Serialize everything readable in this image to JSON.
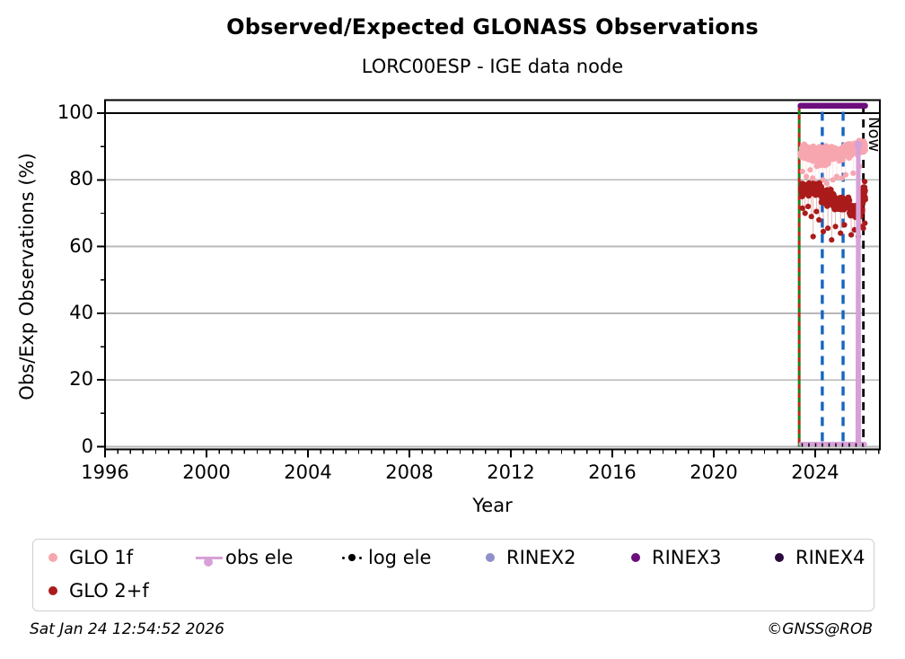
{
  "header": {
    "title": "Observed/Expected GLONASS Observations",
    "subtitle": "LORC00ESP - IGE data node"
  },
  "axes": {
    "x_label": "Year",
    "y_label": "Obs/Exp Observations (%)",
    "x_ticks": [
      1996,
      2000,
      2004,
      2008,
      2012,
      2016,
      2020,
      2024
    ],
    "x_minor_step": 0.5,
    "y_ticks": [
      0,
      20,
      40,
      60,
      80,
      100
    ],
    "y_minor_step": 10,
    "x_range": [
      1996,
      2026.55
    ],
    "y_range": [
      -0.8,
      103.9
    ]
  },
  "chart_data": {
    "type": "scatter",
    "title": "Observed/Expected GLONASS Observations",
    "subtitle": "LORC00ESP - IGE data node",
    "xlabel": "Year",
    "ylabel": "Obs/Exp Observations (%)",
    "xlim": [
      1996,
      2026.55
    ],
    "ylim": [
      -0.8,
      103.9
    ],
    "grid": true,
    "reference_line_y": 100,
    "legend_position": "bottom",
    "series": [
      {
        "name": "GLO 1f",
        "type": "scatter",
        "color": "#f7a6b0",
        "marker_r": 3.4,
        "seed": 12345,
        "bands": [
          {
            "x0": 2023.42,
            "x1": 2023.95,
            "mean": 88.2,
            "spread": 3.4,
            "n": 110
          },
          {
            "x0": 2023.95,
            "x1": 2024.55,
            "mean": 87.0,
            "spread": 3.6,
            "n": 130
          },
          {
            "x0": 2024.55,
            "x1": 2025.15,
            "mean": 88.0,
            "spread": 3.0,
            "n": 130
          },
          {
            "x0": 2025.15,
            "x1": 2025.7,
            "mean": 89.0,
            "spread": 2.6,
            "n": 110
          },
          {
            "x0": 2025.7,
            "x1": 2025.97,
            "mean": 90.0,
            "spread": 2.4,
            "n": 70
          }
        ],
        "outliers": [
          [
            2023.5,
            82.5
          ],
          [
            2023.65,
            81.0
          ],
          [
            2023.8,
            83.0
          ],
          [
            2023.9,
            80.5
          ],
          [
            2024.0,
            79.0
          ],
          [
            2024.15,
            78.5
          ],
          [
            2024.3,
            80.0
          ],
          [
            2024.45,
            79.0
          ],
          [
            2024.55,
            77.5
          ],
          [
            2024.7,
            80.0
          ],
          [
            2024.85,
            81.0
          ],
          [
            2025.05,
            80.5
          ],
          [
            2025.2,
            81.5
          ],
          [
            2025.5,
            82.0
          ],
          [
            2025.75,
            84.0
          ]
        ]
      },
      {
        "name": "GLO 2+f",
        "type": "scatter",
        "color": "#aa1b1b",
        "marker_r": 3.4,
        "seed": 67890,
        "bands": [
          {
            "x0": 2023.42,
            "x1": 2024.25,
            "mean": 77.3,
            "spread": 2.6,
            "n": 150
          },
          {
            "x0": 2024.25,
            "x1": 2024.75,
            "mean": 74.5,
            "spread": 3.0,
            "n": 110
          },
          {
            "x0": 2024.75,
            "x1": 2025.35,
            "mean": 73.0,
            "spread": 2.8,
            "n": 120
          },
          {
            "x0": 2025.35,
            "x1": 2025.85,
            "mean": 70.5,
            "spread": 2.8,
            "n": 100
          },
          {
            "x0": 2025.85,
            "x1": 2025.97,
            "mean": 75.5,
            "spread": 3.5,
            "n": 35
          }
        ],
        "outliers": [
          [
            2023.5,
            71.5
          ],
          [
            2023.6,
            70.0
          ],
          [
            2023.72,
            72.0
          ],
          [
            2023.85,
            69.0
          ],
          [
            2023.92,
            63.0
          ],
          [
            2024.05,
            70.5
          ],
          [
            2024.15,
            68.0
          ],
          [
            2024.32,
            64.5
          ],
          [
            2024.5,
            65.5
          ],
          [
            2024.65,
            62.0
          ],
          [
            2024.8,
            66.0
          ],
          [
            2025.0,
            64.0
          ],
          [
            2025.15,
            66.5
          ],
          [
            2025.42,
            63.5
          ],
          [
            2025.55,
            65.0
          ],
          [
            2025.7,
            63.0
          ],
          [
            2025.8,
            66.0
          ],
          [
            2025.9,
            65.5
          ],
          [
            2025.95,
            79.5
          ],
          [
            2025.96,
            67.0
          ]
        ]
      },
      {
        "name": "obs ele",
        "type": "line",
        "color": "#d8a0d8",
        "width": 5,
        "points": [
          [
            2023.44,
            0.8
          ],
          [
            2025.68,
            0.8
          ],
          [
            2025.7,
            90.5
          ],
          [
            2025.72,
            0.8
          ],
          [
            2025.96,
            0.8
          ]
        ],
        "marker": {
          "x": 2025.7,
          "y": 90.5,
          "r": 4.5
        }
      },
      {
        "name": "log ele",
        "type": "dotted",
        "color": "#000000",
        "width": 4,
        "y": 0.5,
        "x0": 2023.46,
        "x1": 2025.96
      },
      {
        "name": "RINEX2",
        "type": "none",
        "color": "#8f8fcb"
      },
      {
        "name": "RINEX3",
        "type": "line",
        "color": "#6d0e7d",
        "width": 6.5,
        "points": [
          [
            2023.42,
            102.2
          ],
          [
            2025.97,
            102.2
          ]
        ]
      },
      {
        "name": "RINEX4",
        "type": "none",
        "color": "#2c0a40"
      }
    ],
    "event_lines": [
      {
        "x": 2023.37,
        "color": "#178717",
        "width": 3.0,
        "dash": "none",
        "name": "data-start-line-green"
      },
      {
        "x": 2023.37,
        "color": "#cc2020",
        "width": 2.6,
        "dash": "5 5",
        "name": "data-start-line-red"
      },
      {
        "x": 2024.28,
        "color": "#1565c2",
        "width": 3.4,
        "dash": "10 7",
        "name": "event-line-blue-1"
      },
      {
        "x": 2025.1,
        "color": "#1565c2",
        "width": 3.4,
        "dash": "10 7",
        "name": "event-line-blue-2"
      },
      {
        "x": 2025.9,
        "color": "#000000",
        "width": 2.8,
        "dash": "9 6",
        "name": "now-line",
        "label": "Now"
      }
    ]
  },
  "legend": {
    "items": [
      {
        "label": "GLO 1f",
        "marker": "dot",
        "color": "#f7a6b0"
      },
      {
        "label": "obs ele",
        "marker": "line-dot",
        "color": "#d8a0d8"
      },
      {
        "label": "log ele",
        "marker": "dotted-dot",
        "color": "#000000"
      },
      {
        "label": "RINEX2",
        "marker": "dot",
        "color": "#8f8fcb"
      },
      {
        "label": "RINEX3",
        "marker": "dot",
        "color": "#6d0e7d"
      },
      {
        "label": "RINEX4",
        "marker": "dot",
        "color": "#2c0a40"
      },
      {
        "label": "GLO 2+f",
        "marker": "dot",
        "color": "#aa1b1b"
      }
    ]
  },
  "annotations": {
    "now_label": "Now"
  },
  "footer": {
    "timestamp": "Sat Jan 24 12:54:52 2026",
    "credit": "©GNSS@ROB"
  },
  "colors": {
    "grid": "#b8b8b8",
    "frame": "#000000",
    "background": "#ffffff"
  }
}
